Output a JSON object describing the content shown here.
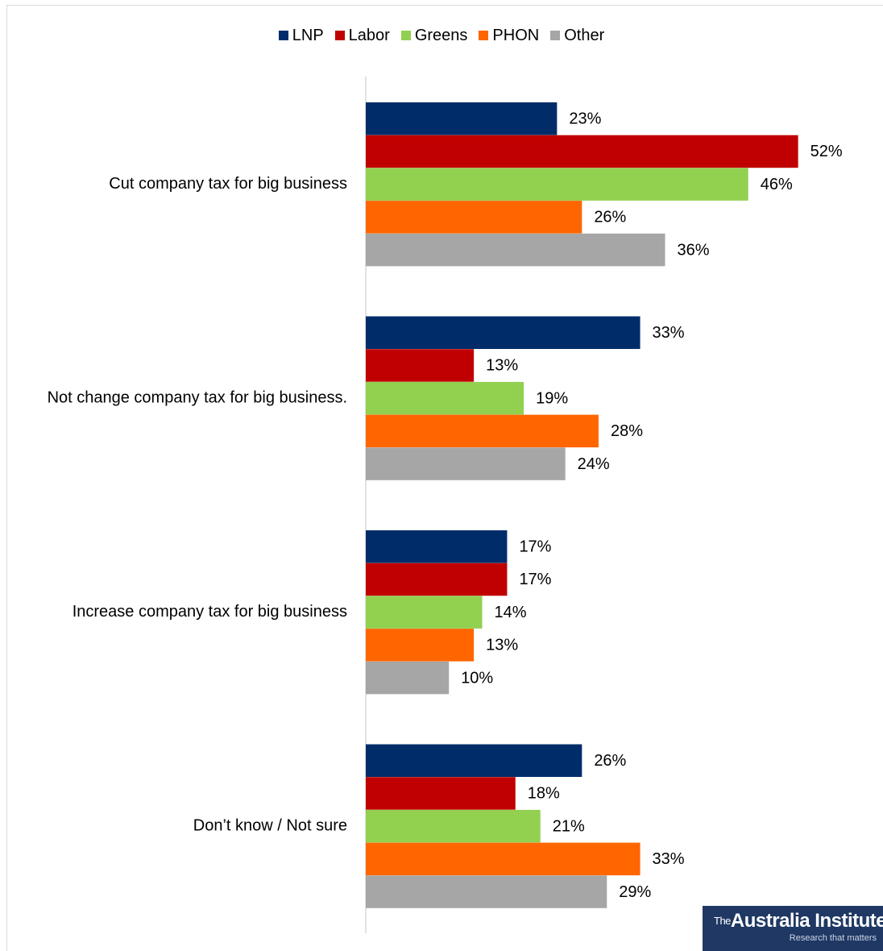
{
  "chart_data": {
    "type": "bar",
    "orientation": "horizontal",
    "categories": [
      "Cut company tax for big business",
      "Not change company tax for big business.",
      "Increase company tax for big business",
      "Don’t know / Not sure"
    ],
    "series": [
      {
        "name": "LNP",
        "color": "#002d6a",
        "values": [
          23,
          33,
          17,
          26
        ]
      },
      {
        "name": "Labor",
        "color": "#c00000",
        "values": [
          52,
          13,
          17,
          18
        ]
      },
      {
        "name": "Greens",
        "color": "#92d050",
        "values": [
          46,
          19,
          14,
          21
        ]
      },
      {
        "name": "PHON",
        "color": "#ff6600",
        "values": [
          26,
          28,
          13,
          33
        ]
      },
      {
        "name": "Other",
        "color": "#a6a6a6",
        "values": [
          36,
          24,
          10,
          29
        ]
      }
    ],
    "value_suffix": "%",
    "xlim": [
      0,
      55
    ],
    "legend_position": "top",
    "grid": false
  },
  "branding": {
    "logo_prefix": "The",
    "logo_name": "Australia Institute",
    "logo_tagline": "Research that matters"
  }
}
